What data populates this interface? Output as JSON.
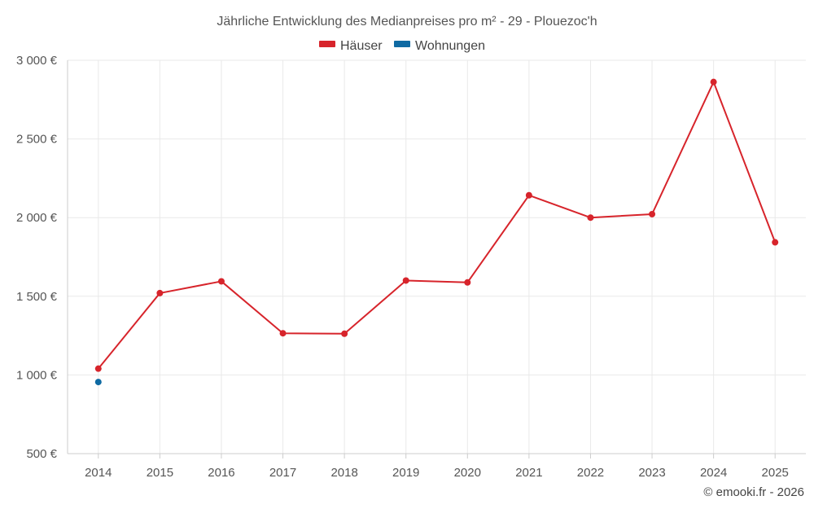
{
  "chart_data": {
    "type": "line",
    "title": "Jährliche Entwicklung des Medianpreises pro m² - 29 - Plouezoc'h",
    "categories": [
      "2014",
      "2015",
      "2016",
      "2017",
      "2018",
      "2019",
      "2020",
      "2021",
      "2022",
      "2023",
      "2024",
      "2025"
    ],
    "series": [
      {
        "name": "Häuser",
        "color": "#d7242b",
        "values": [
          1040,
          1520,
          1595,
          1265,
          1262,
          1600,
          1588,
          2142,
          2000,
          2022,
          2862,
          1843
        ]
      },
      {
        "name": "Wohnungen",
        "color": "#0f6aa3",
        "values": [
          955,
          null,
          null,
          null,
          null,
          null,
          null,
          null,
          null,
          null,
          null,
          null
        ]
      }
    ],
    "ylim": [
      500,
      3000
    ],
    "yticks": [
      500,
      1000,
      1500,
      2000,
      2500,
      3000
    ],
    "ytick_labels": [
      "500 €",
      "1 000 €",
      "1 500 €",
      "2 000 €",
      "2 500 €",
      "3 000 €"
    ],
    "grid": true,
    "legend_position": "top-center",
    "credit": "© emooki.fr - 2026"
  }
}
